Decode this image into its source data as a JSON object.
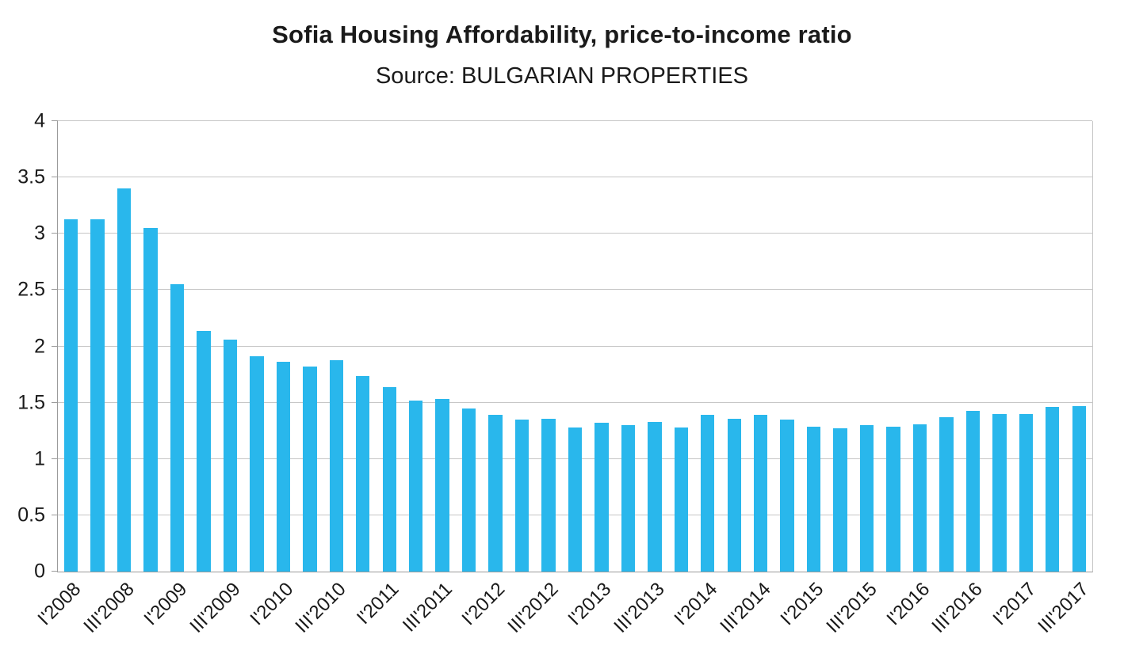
{
  "chart_data": {
    "type": "bar",
    "title": "Sofia Housing Affordability, price-to-income ratio",
    "subtitle": "Source: BULGARIAN PROPERTIES",
    "categories": [
      "I'2008",
      "II'2008",
      "III'2008",
      "IV'2008",
      "I'2009",
      "II'2009",
      "III'2009",
      "IV'2009",
      "I'2010",
      "II'2010",
      "III'2010",
      "IV'2010",
      "I'2011",
      "II'2011",
      "III'2011",
      "IV'2011",
      "I'2012",
      "II'2012",
      "III'2012",
      "IV'2012",
      "I'2013",
      "II'2013",
      "III'2013",
      "IV'2013",
      "I'2014",
      "II'2014",
      "III'2014",
      "IV'2014",
      "I'2015",
      "II'2015",
      "III'2015",
      "IV'2015",
      "I'2016",
      "II'2016",
      "III'2016",
      "IV'2016",
      "I'2017",
      "II'2017",
      "III'2017"
    ],
    "values": [
      3.13,
      3.13,
      3.4,
      3.05,
      2.55,
      2.14,
      2.06,
      1.91,
      1.86,
      1.82,
      1.88,
      1.74,
      1.64,
      1.52,
      1.53,
      1.45,
      1.39,
      1.35,
      1.36,
      1.28,
      1.32,
      1.3,
      1.33,
      1.28,
      1.39,
      1.36,
      1.39,
      1.35,
      1.29,
      1.27,
      1.3,
      1.29,
      1.31,
      1.37,
      1.43,
      1.4,
      1.4,
      1.46,
      1.47
    ],
    "xlabel": "",
    "ylabel": "",
    "ylim": [
      0,
      4
    ],
    "ytick_step": 0.5,
    "ytick_labels": [
      "0",
      "0.5",
      "1",
      "1.5",
      "2",
      "2.5",
      "3",
      "3.5",
      "4"
    ],
    "x_label_every": 2,
    "x_label_rotation": 45,
    "grid": true,
    "legend_position": "none",
    "bar_color": "#29B7EC",
    "grid_color": "#c6c6c6",
    "axis_color": "#9b9b9b",
    "text_color": "#1a1a1a"
  }
}
